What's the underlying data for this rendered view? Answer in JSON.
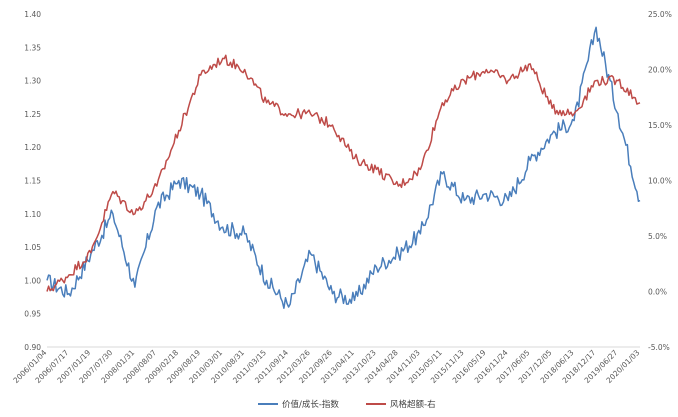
{
  "chart_data": {
    "type": "line",
    "title": "",
    "xlabel": "",
    "ylabel": "",
    "x": [
      "2006/01/04",
      "2006/07/17",
      "2007/01/19",
      "2007/07/30",
      "2008/01/31",
      "2008/08/07",
      "2009/02/18",
      "2009/08/19",
      "2010/03/01",
      "2010/08/31",
      "2011/03/15",
      "2011/09/14",
      "2012/03/26",
      "2012/09/26",
      "2013/04/11",
      "2013/10/23",
      "2014/04/28",
      "2014/11/03",
      "2015/05/11",
      "2015/11/13",
      "2016/05/19",
      "2016/11/24",
      "2017/06/05",
      "2017/12/05",
      "2018/06/13",
      "2018/12/17",
      "2019/06/27",
      "2020/01/03"
    ],
    "yleft": {
      "ticks": [
        "0.90",
        "0.95",
        "1.00",
        "1.05",
        "1.10",
        "1.15",
        "1.20",
        "1.25",
        "1.30",
        "1.35",
        "1.40"
      ],
      "lim": [
        0.9,
        1.4
      ]
    },
    "yright": {
      "ticks": [
        "-5.0%",
        "0.0%",
        "5.0%",
        "10.0%",
        "15.0%",
        "20.0%",
        "25.0%"
      ],
      "lim": [
        -5.0,
        25.0
      ]
    },
    "grid": false,
    "legend_position": "bottom",
    "series": [
      {
        "name": "价值/成长-指数",
        "axis": "left",
        "color": "#4a7ebb",
        "values": [
          1.0,
          0.98,
          1.04,
          1.1,
          0.99,
          1.11,
          1.15,
          1.13,
          1.08,
          1.07,
          1.0,
          0.96,
          1.04,
          0.98,
          0.97,
          1.02,
          1.04,
          1.07,
          1.16,
          1.12,
          1.13,
          1.12,
          1.18,
          1.22,
          1.24,
          1.38,
          1.25,
          1.12
        ]
      },
      {
        "name": "风格超额-右",
        "axis": "right",
        "color": "#be4b48",
        "values": [
          0.0,
          1.5,
          3.5,
          9.0,
          7.0,
          9.5,
          14.5,
          19.5,
          21.0,
          20.0,
          17.0,
          16.0,
          16.0,
          15.0,
          12.0,
          11.0,
          9.5,
          11.0,
          17.0,
          19.0,
          20.0,
          19.0,
          20.5,
          16.5,
          16.0,
          19.0,
          19.0,
          17.0
        ]
      }
    ]
  }
}
